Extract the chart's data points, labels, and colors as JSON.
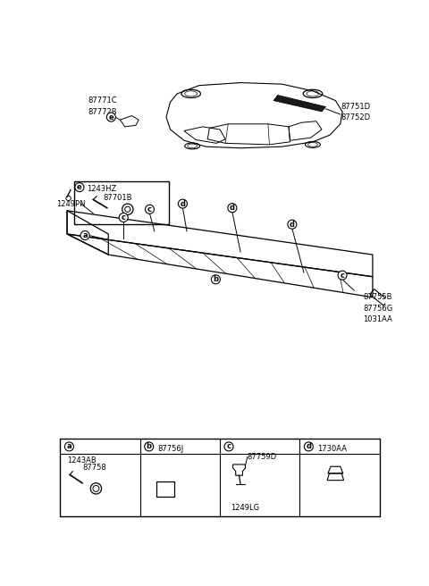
{
  "bg_color": "#ffffff",
  "line_color": "#000000",
  "labels": {
    "part_87771C_87772B": "87771C\n87772B",
    "part_87751D_87752D": "87751D\n87752D",
    "part_1243HZ": "1243HZ",
    "part_87701B": "87701B",
    "part_87755B_87756G_1031AA": "87755B\n87756G\n1031AA",
    "part_1249PN": "1249PN",
    "part_1243AB": "1243AB",
    "part_87758": "87758",
    "part_87756J": "87756J",
    "part_87759D": "87759D",
    "part_1249LG": "1249LG",
    "part_1730AA": "1730AA"
  },
  "font_size": 6,
  "font_size_sm": 5.5
}
